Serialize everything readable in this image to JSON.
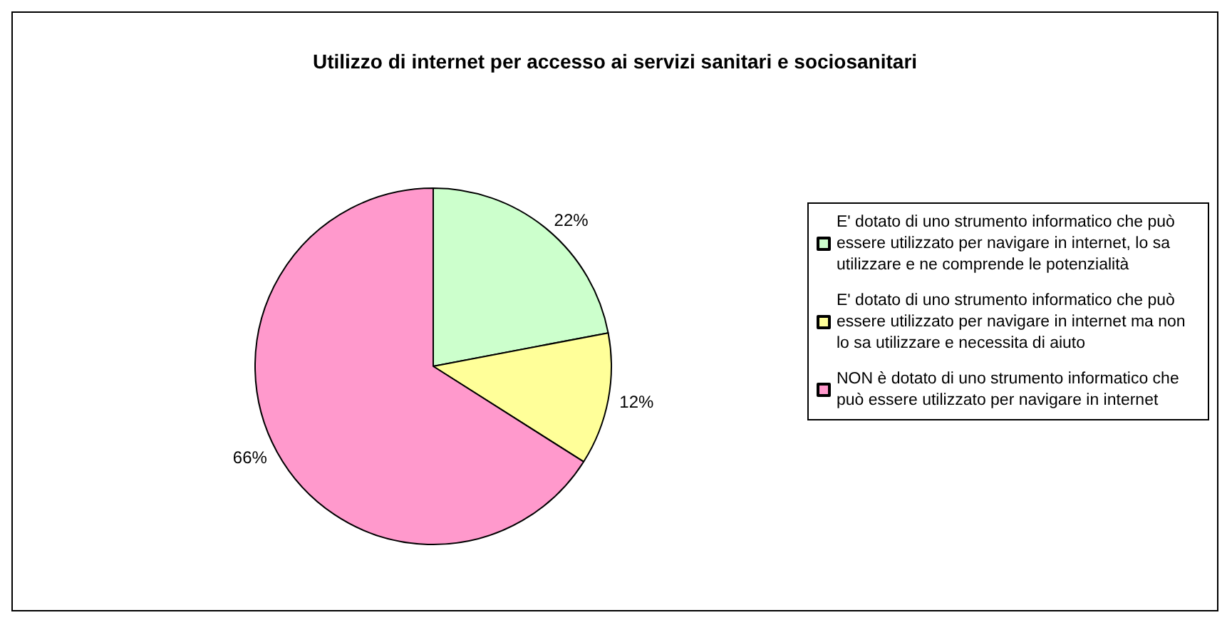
{
  "chart_data": {
    "type": "pie",
    "title": "Utilizzo di internet per accesso ai servizi sanitari e sociosanitari",
    "categories": [
      "E' dotato di uno strumento informatico che può essere utilizzato per navigare in internet, lo sa utilizzare e ne comprende le potenzialità",
      "E' dotato di uno strumento informatico che può essere utilizzato per navigare in internet ma non lo sa utilizzare e necessita di aiuto",
      "NON è dotato di uno strumento informatico che può essere utilizzato per navigare in internet"
    ],
    "values": [
      22,
      12,
      66
    ],
    "value_labels": [
      "22%",
      "12%",
      "66%"
    ],
    "colors": [
      "#ccffcc",
      "#ffff99",
      "#ff99cc"
    ],
    "legend": "right"
  }
}
